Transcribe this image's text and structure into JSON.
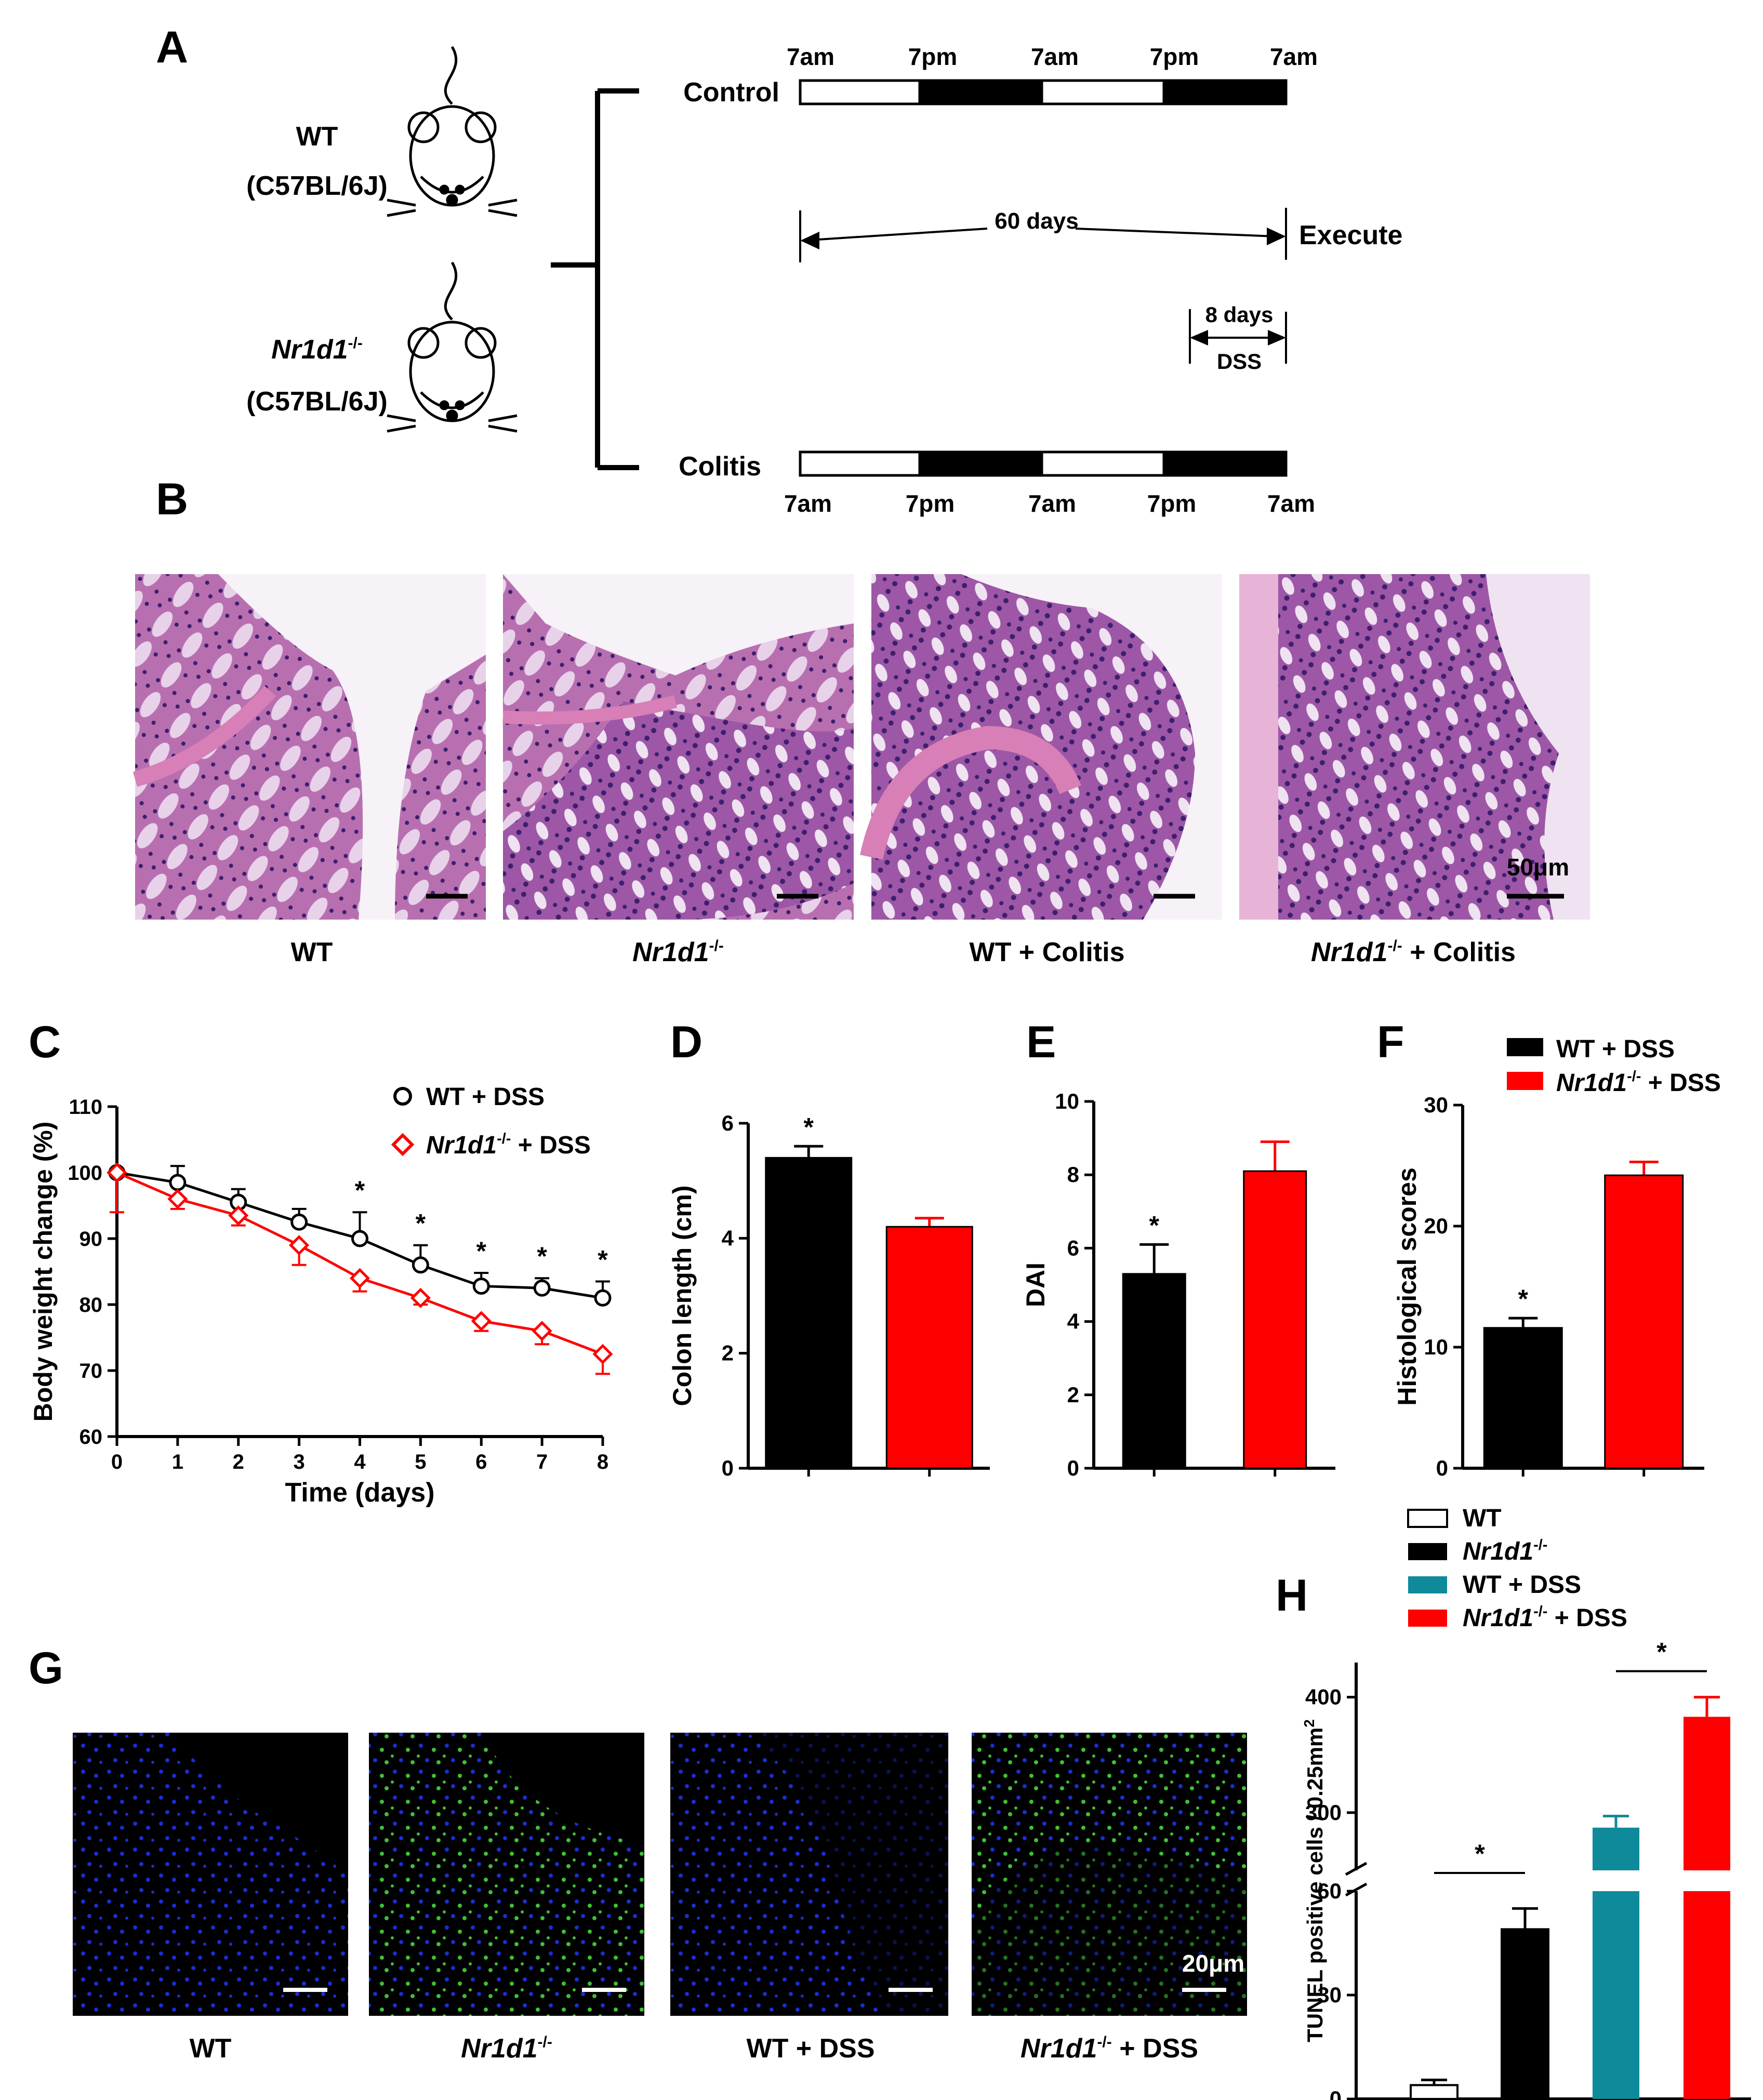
{
  "panels": {
    "A": "A",
    "B": "B",
    "C": "C",
    "D": "D",
    "E": "E",
    "F": "F",
    "G": "G",
    "H": "H"
  },
  "design": {
    "wt_label": "WT",
    "strain": "(C57BL/6J)",
    "ko_italic": "Nr1d1",
    "ko_sup": "-/-",
    "control_label": "Control",
    "colitis_label": "Colitis",
    "times": [
      "7am",
      "7pm",
      "7am",
      "7pm",
      "7am"
    ],
    "sixty_days": "60 days",
    "execute": "Execute",
    "eight_days": "8 days",
    "dss": "DSS"
  },
  "histology": {
    "labels": [
      "WT",
      "Nr1d1-/-",
      "WT + Colitis",
      "Nr1d1-/- + Colitis"
    ],
    "wt": "WT",
    "wt_colitis": "WT + Colitis",
    "colitis_suffix": " + Colitis",
    "scale_text": "50μm",
    "colors": {
      "tissue": "#b86fb0",
      "lumen": "#f6f2f7",
      "nuclei": "#3d1f6e",
      "muscle": "#d77fb6"
    }
  },
  "tunel": {
    "wt": "WT",
    "dss_suffix": " + DSS",
    "scale_text": "20μm",
    "colors": {
      "bg": "#000000",
      "dapi": "#1a2ecf",
      "tunel": "#3fbf3a"
    }
  },
  "chart_data": [
    {
      "panel": "C",
      "type": "line",
      "xlabel": "Time (days)",
      "ylabel": "Body weight change (%)",
      "ylim": [
        60,
        110
      ],
      "x": [
        0,
        1,
        2,
        3,
        4,
        5,
        6,
        7,
        8
      ],
      "yticks": [
        60,
        70,
        80,
        90,
        100,
        110
      ],
      "series": [
        {
          "name": "WT + DSS",
          "color": "#000000",
          "marker": "circle",
          "values": [
            100,
            98.5,
            95.5,
            92.5,
            90,
            86,
            82.8,
            82.5,
            81
          ],
          "errors": [
            0,
            2.5,
            2,
            2,
            4,
            3,
            2,
            1.5,
            2.5
          ]
        },
        {
          "name": "Nr1d1-/- + DSS",
          "color": "#ff0000",
          "marker": "diamond",
          "values": [
            100,
            96,
            93.5,
            89,
            84,
            81,
            77.5,
            76,
            72.5
          ],
          "errors": [
            6,
            1.5,
            1.5,
            3,
            2,
            1,
            1.5,
            2,
            3
          ]
        }
      ],
      "significance": [
        4,
        5,
        6,
        7,
        8
      ],
      "star": "*",
      "legend": {
        "wt": "WT + DSS",
        "ko_italic": "Nr1d1",
        "ko_sup": "-/-",
        "ko_suffix": " + DSS"
      }
    },
    {
      "panel": "D",
      "type": "bar",
      "ylabel": "Colon length (cm)",
      "ylim": [
        0,
        6
      ],
      "yticks": [
        0,
        2,
        4,
        6
      ],
      "categories": [
        "WT + DSS",
        "Nr1d1-/- + DSS"
      ],
      "values": [
        5.4,
        4.2
      ],
      "errors": [
        0.2,
        0.15
      ],
      "colors": [
        "#000000",
        "#ff0000"
      ],
      "star": "*"
    },
    {
      "panel": "E",
      "type": "bar",
      "ylabel": "DAI",
      "ylim": [
        0,
        10
      ],
      "yticks": [
        0,
        2,
        4,
        6,
        8,
        10
      ],
      "categories": [
        "WT + DSS",
        "Nr1d1-/- + DSS"
      ],
      "values": [
        5.3,
        8.1
      ],
      "errors": [
        0.8,
        0.8
      ],
      "colors": [
        "#000000",
        "#ff0000"
      ],
      "star": "*"
    },
    {
      "panel": "F",
      "type": "bar",
      "ylabel": "Histological scores",
      "ylim": [
        0,
        30
      ],
      "yticks": [
        0,
        10,
        20,
        30
      ],
      "categories": [
        "WT + DSS",
        "Nr1d1-/- + DSS"
      ],
      "values": [
        11.6,
        24.2
      ],
      "errors": [
        0.8,
        1.1
      ],
      "colors": [
        "#000000",
        "#ff0000"
      ],
      "star": "*",
      "legend": {
        "wt": "WT + DSS",
        "ko_italic": "Nr1d1",
        "ko_sup": "-/-",
        "ko_suffix": " + DSS"
      }
    },
    {
      "panel": "H",
      "type": "bar",
      "ylabel": "TUNEL positive cells / 0.25mm",
      "ylabel_sup": "2",
      "axis_break": [
        60,
        250
      ],
      "yticks": [
        0,
        30,
        60,
        300,
        400
      ],
      "categories": [
        "WT",
        "Nr1d1-/-",
        "WT + DSS",
        "Nr1d1-/- + DSS"
      ],
      "values": [
        4,
        49,
        287,
        383
      ],
      "errors": [
        1.5,
        6,
        10,
        17
      ],
      "colors": [
        "#ffffff",
        "#000000",
        "#0e8a9b",
        "#ff0000"
      ],
      "star": "*",
      "legend": {
        "wt": "WT",
        "ko_italic": "Nr1d1",
        "ko_sup": "-/-",
        "wt_dss": "WT + DSS",
        "ko_dss_suffix": " + DSS"
      }
    }
  ]
}
